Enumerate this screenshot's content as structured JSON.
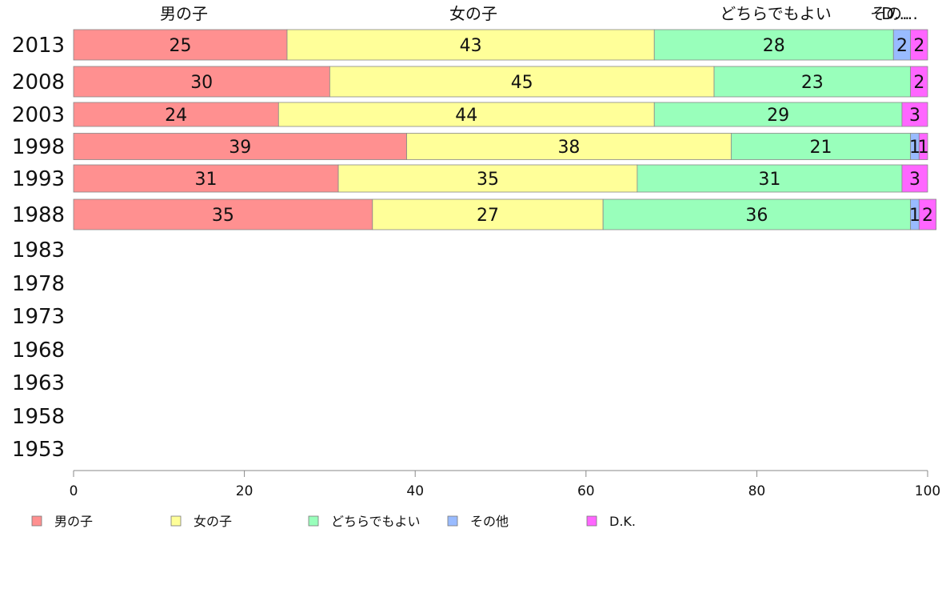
{
  "chart_data": {
    "type": "bar",
    "orientation": "horizontal",
    "stacked": true,
    "categories": [
      "2013",
      "2008",
      "2003",
      "1998",
      "1993",
      "1988",
      "1983",
      "1978",
      "1973",
      "1968",
      "1963",
      "1958",
      "1953"
    ],
    "series": [
      {
        "name": "男の子",
        "color": "#ff9090",
        "values": [
          25,
          30,
          24,
          39,
          31,
          35,
          null,
          null,
          null,
          null,
          null,
          null,
          null
        ]
      },
      {
        "name": "女の子",
        "color": "#ffff99",
        "values": [
          43,
          45,
          44,
          38,
          35,
          27,
          null,
          null,
          null,
          null,
          null,
          null,
          null
        ]
      },
      {
        "name": "どちらでもよい",
        "color": "#99ffbb",
        "values": [
          28,
          23,
          29,
          21,
          31,
          36,
          null,
          null,
          null,
          null,
          null,
          null,
          null
        ]
      },
      {
        "name": "その他",
        "color": "#99bbff",
        "values": [
          2,
          0,
          0,
          1,
          0,
          1,
          null,
          null,
          null,
          null,
          null,
          null,
          null
        ]
      },
      {
        "name": "D.K.",
        "color": "#ff66ff",
        "values": [
          2,
          2,
          3,
          1,
          3,
          2,
          null,
          null,
          null,
          null,
          null,
          null,
          null
        ]
      }
    ],
    "top_labels": [
      "男の子",
      "女の子",
      "どちらでもよい",
      "その…",
      "D…"
    ],
    "xlim": [
      0,
      100
    ],
    "xticks": [
      0,
      20,
      40,
      60,
      80,
      100
    ],
    "grid": false,
    "legend_position": "bottom"
  }
}
